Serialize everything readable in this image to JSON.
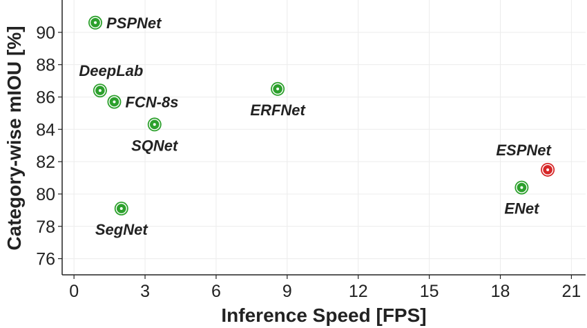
{
  "chart_data": {
    "type": "scatter",
    "xlabel": "Inference Speed [FPS]",
    "ylabel": "Category-wise mIOU [%]",
    "xlim": [
      -0.5,
      21.6
    ],
    "ylim": [
      75,
      92
    ],
    "xticks": [
      0,
      3,
      6,
      9,
      12,
      15,
      18,
      21
    ],
    "yticks": [
      76,
      78,
      80,
      82,
      84,
      86,
      88,
      90
    ],
    "grid": true,
    "points": [
      {
        "label": "PSPNet",
        "x": 0.9,
        "y": 90.6,
        "color": "#2ca02c"
      },
      {
        "label": "DeepLab",
        "x": 1.1,
        "y": 86.4,
        "color": "#2ca02c"
      },
      {
        "label": "FCN-8s",
        "x": 1.7,
        "y": 85.7,
        "color": "#2ca02c"
      },
      {
        "label": "SQNet",
        "x": 3.4,
        "y": 84.3,
        "color": "#2ca02c"
      },
      {
        "label": "SegNet",
        "x": 2.0,
        "y": 79.1,
        "color": "#2ca02c"
      },
      {
        "label": "ERFNet",
        "x": 8.6,
        "y": 86.5,
        "color": "#2ca02c"
      },
      {
        "label": "ENet",
        "x": 18.9,
        "y": 80.4,
        "color": "#2ca02c"
      },
      {
        "label": "ESPNet",
        "x": 20.0,
        "y": 81.5,
        "color": "#d62728"
      }
    ]
  }
}
